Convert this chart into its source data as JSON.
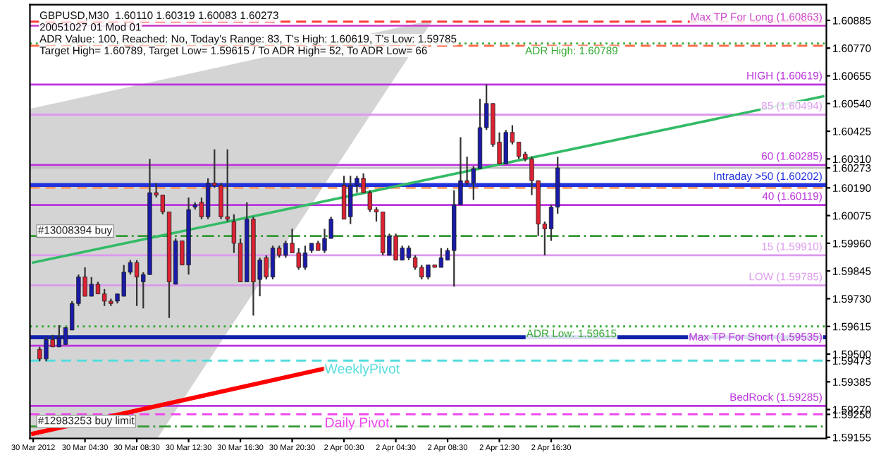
{
  "chart_data": {
    "type": "candlestick",
    "categories": [
      "30 Mar 2012",
      null,
      null,
      null,
      null,
      null,
      null,
      null,
      "30 Mar 04:30",
      null,
      null,
      null,
      null,
      null,
      null,
      null,
      "30 Mar 08:30",
      null,
      null,
      null,
      null,
      null,
      null,
      null,
      "30 Mar 12:30",
      null,
      null,
      null,
      null,
      null,
      null,
      null,
      "30 Mar 16:30",
      null,
      null,
      null,
      null,
      null,
      null,
      null,
      "30 Mar 20:30",
      null,
      null,
      null,
      null,
      null,
      null,
      null,
      "2 Apr 00:30",
      null,
      null,
      null,
      null,
      null,
      null,
      null,
      "2 Apr 04:30",
      null,
      null,
      null,
      null,
      null,
      null,
      null,
      "2 Apr 08:30",
      null,
      null,
      null,
      null,
      null,
      null,
      null,
      "2 Apr 12:30",
      null,
      null,
      null,
      null,
      null,
      null,
      null,
      "2 Apr 16:30",
      null,
      null,
      null,
      null,
      null,
      null,
      null,
      null,
      null,
      null,
      null,
      null,
      null,
      null,
      null,
      null,
      null,
      null,
      null,
      null,
      null,
      null,
      null,
      null,
      null,
      null,
      null,
      null,
      null,
      null,
      null,
      null,
      null,
      null,
      null,
      null,
      null,
      null,
      null,
      null,
      null,
      null
    ],
    "ohlc": [
      null,
      [
        1.5952,
        1.5953,
        1.5947,
        1.5948
      ],
      [
        1.5948,
        1.5957,
        1.5947,
        1.5956
      ],
      [
        1.5956,
        1.5958,
        1.5953,
        1.5953
      ],
      [
        1.5953,
        1.5962,
        1.5953,
        1.5957
      ],
      [
        1.5954,
        1.5961,
        1.5954,
        1.5961
      ],
      [
        1.596,
        1.5972,
        1.596,
        1.5971
      ],
      [
        1.5971,
        1.5983,
        1.597,
        1.5982
      ],
      [
        1.5982,
        1.5986,
        1.5974,
        1.5974
      ],
      [
        1.5974,
        1.5982,
        1.5974,
        1.5979
      ],
      [
        1.5979,
        1.598,
        1.5975,
        1.5975
      ],
      [
        1.5975,
        1.5977,
        1.597,
        1.5972
      ],
      [
        1.5972,
        1.5973,
        1.597,
        1.5971
      ],
      [
        1.5972,
        1.5975,
        1.5971,
        1.5975
      ],
      [
        1.5974,
        1.5987,
        1.5974,
        1.5984
      ],
      [
        1.5984,
        1.5989,
        1.5983,
        1.5988
      ],
      [
        1.5988,
        1.5989,
        1.597,
        1.5982
      ],
      [
        1.598,
        1.5984,
        1.5969,
        1.5983
      ],
      [
        1.5983,
        1.6031,
        1.5983,
        1.6017
      ],
      [
        1.6017,
        1.6021,
        1.6015,
        1.6016
      ],
      [
        1.6016,
        1.6016,
        1.6008,
        1.6009
      ],
      [
        1.6009,
        1.6009,
        1.5965,
        1.598
      ],
      [
        1.5979,
        1.5998,
        1.5979,
        1.5997
      ],
      [
        1.5997,
        1.5997,
        1.5987,
        1.5987
      ],
      [
        1.5987,
        1.6015,
        1.5983,
        1.601
      ],
      [
        1.6011,
        1.6013,
        1.601,
        1.6012
      ],
      [
        1.6013,
        1.6015,
        1.6006,
        1.6007
      ],
      [
        1.6007,
        1.6023,
        1.6006,
        1.6021
      ],
      [
        1.6021,
        1.6035,
        1.6019,
        1.602
      ],
      [
        1.602,
        1.6021,
        1.6006,
        1.6007
      ],
      [
        1.6007,
        1.6035,
        1.6005,
        1.6006
      ],
      [
        1.6005,
        1.6008,
        1.5992,
        1.5996
      ],
      [
        1.5996,
        1.5998,
        1.598,
        1.598
      ],
      [
        1.598,
        1.6013,
        1.598,
        1.6006
      ],
      [
        1.6006,
        1.6007,
        1.5966,
        1.598
      ],
      [
        1.5981,
        1.599,
        1.5974,
        1.5989
      ],
      [
        1.599,
        1.5991,
        1.5981,
        1.5982
      ],
      [
        1.5982,
        1.5995,
        1.5981,
        1.5994
      ],
      [
        1.5994,
        1.5995,
        1.599,
        1.5991
      ],
      [
        1.5991,
        1.5997,
        1.599,
        1.5996
      ],
      [
        1.5996,
        1.6002,
        1.5992,
        1.5992
      ],
      [
        1.5992,
        1.5994,
        1.5985,
        1.5986
      ],
      [
        1.5986,
        1.5995,
        1.5985,
        1.5992
      ],
      [
        1.5993,
        1.5996,
        1.5992,
        1.5996
      ],
      [
        1.5996,
        1.5997,
        1.5993,
        1.5993
      ],
      [
        1.5993,
        1.6002,
        1.5992,
        1.5998
      ],
      [
        1.5998,
        1.6007,
        1.5998,
        1.6006
      ],
      null,
      [
        1.602,
        1.6024,
        1.6006,
        1.6006
      ],
      [
        1.6007,
        1.6024,
        1.6004,
        1.602
      ],
      [
        1.602,
        1.6024,
        1.6017,
        1.6023
      ],
      [
        1.6023,
        1.6025,
        1.6017,
        1.6017
      ],
      [
        1.6017,
        1.6018,
        1.6009,
        1.601
      ],
      [
        1.601,
        1.6011,
        1.6005,
        1.6009
      ],
      [
        1.6009,
        1.6009,
        1.5991,
        1.5992
      ],
      [
        1.5991,
        1.6,
        1.5991,
        1.5999
      ],
      [
        1.5999,
        1.6,
        1.5989,
        1.5989
      ],
      [
        1.5989,
        1.5995,
        1.5989,
        1.5994
      ],
      [
        1.599,
        1.5995,
        1.5989,
        1.5994
      ],
      [
        1.599,
        1.5991,
        1.5985,
        1.5986
      ],
      [
        1.5986,
        1.5987,
        1.5981,
        1.5982
      ],
      [
        1.5982,
        1.5987,
        1.5981,
        1.5987
      ],
      [
        1.5987,
        1.5987,
        1.5986,
        1.5986
      ],
      [
        1.5986,
        1.5994,
        1.5986,
        1.599
      ],
      [
        1.5989,
        1.5994,
        1.5989,
        1.5993
      ],
      [
        1.5993,
        1.6018,
        1.5978,
        1.6012
      ],
      [
        1.6012,
        1.604,
        1.6012,
        1.6022
      ],
      [
        1.6022,
        1.6032,
        1.602,
        1.6021
      ],
      [
        1.6021,
        1.6028,
        1.6014,
        1.6027
      ],
      [
        1.6027,
        1.6056,
        1.6027,
        1.6044
      ],
      [
        1.6044,
        1.6062,
        1.6043,
        1.6054
      ],
      [
        1.6054,
        1.6054,
        1.6036,
        1.6037
      ],
      [
        1.6038,
        1.6042,
        1.6029,
        1.6029
      ],
      [
        1.6029,
        1.6043,
        1.6029,
        1.6042
      ],
      [
        1.6042,
        1.6045,
        1.6037,
        1.6038
      ],
      [
        1.6038,
        1.6038,
        1.6031,
        1.6032
      ],
      [
        1.6033,
        1.6034,
        1.603,
        1.6031
      ],
      [
        1.6031,
        1.6032,
        1.6016,
        1.6022
      ],
      [
        1.6022,
        1.6022,
        1.5999,
        1.6004
      ],
      [
        1.6004,
        1.6005,
        1.5991,
        1.6002
      ],
      [
        1.6002,
        1.6012,
        1.5997,
        1.6011
      ],
      [
        1.6011,
        1.60319,
        1.60083,
        1.60273
      ],
      null,
      null,
      null,
      null,
      null,
      null,
      null,
      null,
      null,
      null,
      null,
      null,
      null,
      null,
      null,
      null,
      null,
      null,
      null,
      null,
      null,
      null,
      null,
      null,
      null,
      null,
      null,
      null,
      null,
      null,
      null,
      null,
      null,
      null,
      null,
      null,
      null,
      null,
      null,
      null,
      null
    ],
    "series": [
      {
        "type": "line",
        "color": "#33bb66",
        "values": [
          1.5988,
          null,
          null,
          null,
          null,
          null,
          null,
          null,
          null,
          null,
          null,
          null,
          null,
          null,
          null,
          null,
          null,
          null,
          null,
          null,
          null,
          null,
          null,
          null,
          null,
          null,
          null,
          null,
          null,
          null,
          null,
          null,
          null,
          null,
          null,
          null,
          null,
          null,
          null,
          null,
          null,
          null,
          null,
          null,
          null,
          null,
          null,
          null,
          null,
          null,
          null,
          null,
          null,
          null,
          null,
          null,
          null,
          null,
          null,
          null,
          null,
          null,
          null,
          null,
          null,
          null,
          null,
          null,
          null,
          null,
          null,
          null,
          null,
          null,
          null,
          null,
          null,
          null,
          null,
          null,
          null,
          null,
          null,
          null,
          null,
          null,
          null,
          null,
          null,
          null,
          null,
          null,
          null,
          null,
          null,
          null,
          null,
          null,
          null,
          null,
          null,
          null,
          null,
          null,
          null,
          null,
          null,
          null,
          null,
          null,
          null,
          null,
          null,
          null,
          null,
          null,
          null,
          null,
          null,
          null,
          null,
          null,
          1.6057
        ]
      },
      {
        "type": "line",
        "color": "#ff0000",
        "values": [
          1.5917,
          null,
          null,
          null,
          null,
          null,
          null,
          null,
          null,
          null,
          null,
          null,
          null,
          null,
          null,
          null,
          null,
          null,
          null,
          null,
          null,
          null,
          null,
          null,
          null,
          null,
          null,
          null,
          null,
          null,
          null,
          null,
          null,
          null,
          null,
          null,
          null,
          null,
          null,
          null,
          null,
          null,
          null,
          null,
          null,
          1.5944,
          null,
          null,
          null,
          null,
          null,
          null,
          null,
          null,
          null,
          null,
          null,
          null,
          null,
          null,
          null,
          null,
          null,
          null,
          null,
          null,
          null,
          null,
          null,
          null,
          null,
          null,
          null,
          null,
          null,
          null,
          null,
          null,
          null,
          null,
          null,
          null,
          null,
          null,
          null,
          null,
          null,
          null,
          null,
          null,
          null,
          null,
          null,
          null,
          null,
          null,
          null,
          null,
          null,
          null,
          null,
          null,
          null,
          null,
          null,
          null,
          null,
          null,
          null,
          null,
          null,
          null,
          null,
          null,
          null,
          null,
          null,
          null,
          null,
          null,
          null,
          null,
          null
        ]
      }
    ],
    "ylim": [
      1.5915,
      1.6095
    ],
    "yticks": [
      1.60885,
      {
        "value": 1.6077,
        "label": "1.60770"
      },
      1.60655,
      {
        "value": 1.6054,
        "label": "1.60540"
      },
      1.60425,
      {
        "value": 1.6031,
        "label": "1.60310"
      },
      1.60273,
      {
        "value": 1.6019,
        "label": "1.60190"
      },
      1.60075,
      {
        "value": 1.5996,
        "label": "1.59960"
      },
      1.59845,
      {
        "value": 1.5973,
        "label": "1.59730"
      },
      1.59615,
      {
        "value": 1.595,
        "label": "1.59500"
      },
      1.59473,
      1.59385,
      {
        "value": 1.5927,
        "label": "1.59270"
      },
      {
        "value": 1.5925,
        "label": "1.59250"
      },
      1.59155
    ],
    "ref_lines": [
      {
        "axis": "y",
        "value": 1.60863,
        "label": "Max TP For Long (1.60863)",
        "color": "#cc44cc"
      },
      {
        "axis": "y",
        "value": 1.6088,
        "color": "#ff3333",
        "line_style": "dashed"
      },
      {
        "axis": "y",
        "value": 1.6078,
        "color": "#ff6644",
        "line_style": "dashed"
      },
      {
        "axis": "y",
        "value": 1.60789,
        "label": "ADR High: 1.60789",
        "color": "#33aa33",
        "line_style": "dotted"
      },
      {
        "axis": "y",
        "value": 1.60619,
        "label": "HIGH (1.60619)",
        "color": "#bb33dd"
      },
      {
        "axis": "y",
        "value": 1.60494,
        "label": "85 (1.60494)",
        "color": "#dd99ee"
      },
      {
        "axis": "y",
        "value": 1.60285,
        "label": "60 (1.60285)",
        "color": "#bb33dd"
      },
      {
        "axis": "y",
        "value": 1.60273,
        "color": "#c0c0c0"
      },
      {
        "axis": "y",
        "value": 1.60202,
        "label": "Intraday >50 (1.60202)",
        "color": "#2233dd"
      },
      {
        "axis": "y",
        "value": 1.6019,
        "color": "#ff9966",
        "line_style": "dashed"
      },
      {
        "axis": "y",
        "value": 1.60119,
        "label": "40 (1.60119)",
        "color": "#bb33dd"
      },
      {
        "axis": "y",
        "value": 1.5999,
        "label": "#13008394 buy",
        "color": "#339933",
        "line_style": "dashdot"
      },
      {
        "axis": "y",
        "value": 1.5991,
        "label": "15 (1.59910)",
        "color": "#dd99ee"
      },
      {
        "axis": "y",
        "value": 1.59785,
        "label": "LOW (1.59785)",
        "color": "#dd99ee"
      },
      {
        "axis": "y",
        "value": 1.59615,
        "label": "ADR Low: 1.59615",
        "color": "#33aa33",
        "line_style": "dotted"
      },
      {
        "axis": "y",
        "value": 1.5957,
        "color": "#1122aa"
      },
      {
        "axis": "y",
        "value": 1.59535,
        "label": "Max TP For Short (1.59535)",
        "color": "#bb33dd"
      },
      {
        "axis": "y",
        "value": 1.59473,
        "label": "WeeklyPivot",
        "color": "#55dddd",
        "line_style": "dashed"
      },
      {
        "axis": "y",
        "value": 1.59285,
        "label": "BedRock (1.59285)",
        "color": "#bb33dd"
      },
      {
        "axis": "y",
        "value": 1.5925,
        "label": "Daily Pivot",
        "color": "#ee44ee",
        "line_style": "dashed"
      },
      {
        "axis": "y",
        "value": 1.592,
        "label": "#12983253 buy limit",
        "color": "#339933",
        "line_style": "dashdot"
      }
    ],
    "annotations": [
      "GBPUSD,M30  1.60110 1.60319 1.60083 1.60273",
      "20051027 01 Mod 01",
      "ADR Value: 100, Reached: No, Today's Range: 83, T's High: 1.60619, T's Low: 1.59785",
      "Target High= 1.60789, Target Low= 1.59615 / To ADR High= 52, To ADR Low= 66"
    ]
  }
}
